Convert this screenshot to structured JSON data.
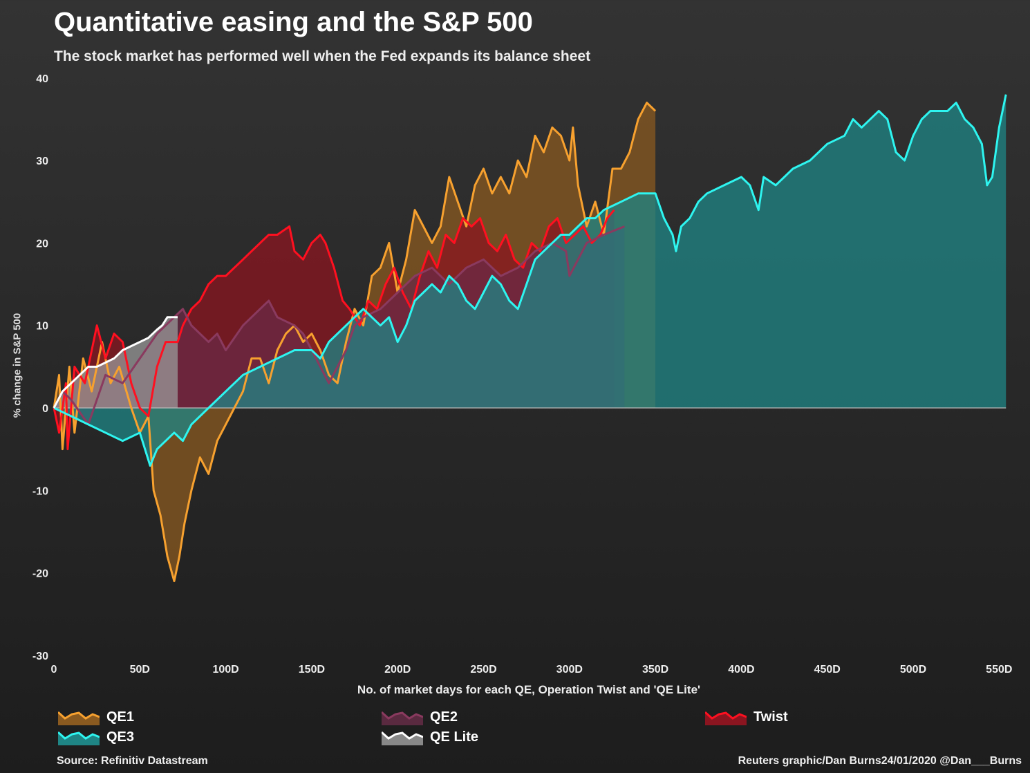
{
  "chart_data": {
    "type": "area",
    "title": "Quantitative easing and the S&P 500",
    "subtitle": "The stock market has performed well when the Fed expands its balance sheet",
    "xlabel": "No. of market days for each QE, Operation Twist and 'QE Lite'",
    "ylabel": "% change in S&P 500",
    "xlim": [
      0,
      560
    ],
    "ylim": [
      -30,
      40
    ],
    "x_ticks": [
      0,
      50,
      100,
      150,
      200,
      250,
      300,
      350,
      400,
      450,
      500,
      550
    ],
    "x_tick_labels": [
      "0",
      "50D",
      "100D",
      "150D",
      "200D",
      "250D",
      "300D",
      "350D",
      "400D",
      "450D",
      "500D",
      "550D"
    ],
    "y_ticks": [
      -30,
      -20,
      -10,
      0,
      10,
      20,
      30,
      40
    ],
    "y_tick_labels": [
      "-30",
      "-20",
      "-10",
      "0",
      "10",
      "20",
      "30",
      "40"
    ],
    "legend_placement": "bottom",
    "series": [
      {
        "name": "QE1",
        "line": "#f7a12f",
        "fill": "#8a5a20",
        "points": [
          [
            0,
            0
          ],
          [
            3,
            4
          ],
          [
            5,
            -5
          ],
          [
            9,
            5
          ],
          [
            12,
            -3
          ],
          [
            17,
            6
          ],
          [
            22,
            2
          ],
          [
            28,
            8
          ],
          [
            33,
            3
          ],
          [
            38,
            5
          ],
          [
            45,
            0
          ],
          [
            50,
            -3
          ],
          [
            55,
            -1
          ],
          [
            58,
            -10
          ],
          [
            62,
            -13
          ],
          [
            66,
            -18
          ],
          [
            70,
            -21
          ],
          [
            73,
            -18
          ],
          [
            76,
            -14
          ],
          [
            80,
            -10
          ],
          [
            85,
            -6
          ],
          [
            90,
            -8
          ],
          [
            95,
            -4
          ],
          [
            100,
            -2
          ],
          [
            105,
            0
          ],
          [
            110,
            2
          ],
          [
            115,
            6
          ],
          [
            120,
            6
          ],
          [
            125,
            3
          ],
          [
            130,
            7
          ],
          [
            135,
            9
          ],
          [
            140,
            10
          ],
          [
            145,
            8
          ],
          [
            150,
            9
          ],
          [
            155,
            7
          ],
          [
            160,
            4
          ],
          [
            165,
            3
          ],
          [
            170,
            8
          ],
          [
            175,
            12
          ],
          [
            180,
            10
          ],
          [
            185,
            16
          ],
          [
            190,
            17
          ],
          [
            195,
            20
          ],
          [
            200,
            14
          ],
          [
            205,
            18
          ],
          [
            210,
            24
          ],
          [
            215,
            22
          ],
          [
            220,
            20
          ],
          [
            225,
            22
          ],
          [
            230,
            28
          ],
          [
            235,
            25
          ],
          [
            240,
            22
          ],
          [
            245,
            27
          ],
          [
            250,
            29
          ],
          [
            255,
            26
          ],
          [
            260,
            28
          ],
          [
            265,
            26
          ],
          [
            270,
            30
          ],
          [
            275,
            28
          ],
          [
            280,
            33
          ],
          [
            285,
            31
          ],
          [
            290,
            34
          ],
          [
            295,
            33
          ],
          [
            300,
            30
          ],
          [
            302,
            34
          ],
          [
            305,
            27
          ],
          [
            310,
            22
          ],
          [
            315,
            25
          ],
          [
            320,
            21
          ],
          [
            325,
            29
          ],
          [
            330,
            29
          ],
          [
            335,
            31
          ],
          [
            340,
            35
          ],
          [
            345,
            37
          ],
          [
            350,
            36
          ]
        ]
      },
      {
        "name": "Twist",
        "line": "#ff1020",
        "fill": "#8b1520",
        "points": [
          [
            0,
            0
          ],
          [
            3,
            -3
          ],
          [
            7,
            3
          ],
          [
            8,
            -5
          ],
          [
            12,
            5
          ],
          [
            18,
            3
          ],
          [
            25,
            10
          ],
          [
            30,
            6
          ],
          [
            35,
            9
          ],
          [
            40,
            8
          ],
          [
            45,
            3
          ],
          [
            50,
            0
          ],
          [
            55,
            -1
          ],
          [
            60,
            5
          ],
          [
            65,
            8
          ],
          [
            72,
            8
          ],
          [
            75,
            10
          ],
          [
            80,
            12
          ],
          [
            85,
            13
          ],
          [
            90,
            15
          ],
          [
            95,
            16
          ],
          [
            100,
            16
          ],
          [
            105,
            17
          ],
          [
            110,
            18
          ],
          [
            115,
            19
          ],
          [
            120,
            20
          ],
          [
            125,
            21
          ],
          [
            130,
            21
          ],
          [
            137,
            22
          ],
          [
            140,
            19
          ],
          [
            145,
            18
          ],
          [
            150,
            20
          ],
          [
            155,
            21
          ],
          [
            158,
            20
          ],
          [
            163,
            17
          ],
          [
            168,
            13
          ],
          [
            172,
            12
          ],
          [
            178,
            10
          ],
          [
            183,
            13
          ],
          [
            188,
            12
          ],
          [
            193,
            15
          ],
          [
            198,
            17
          ],
          [
            203,
            14
          ],
          [
            208,
            12
          ],
          [
            213,
            16
          ],
          [
            218,
            19
          ],
          [
            223,
            17
          ],
          [
            228,
            21
          ],
          [
            233,
            20
          ],
          [
            238,
            23
          ],
          [
            243,
            22
          ],
          [
            248,
            23
          ],
          [
            253,
            20
          ],
          [
            258,
            19
          ],
          [
            263,
            21
          ],
          [
            268,
            18
          ],
          [
            273,
            17
          ],
          [
            278,
            20
          ],
          [
            283,
            19
          ],
          [
            288,
            22
          ],
          [
            293,
            23
          ],
          [
            298,
            20
          ],
          [
            303,
            21
          ],
          [
            308,
            22
          ],
          [
            313,
            20
          ],
          [
            318,
            21
          ],
          [
            322,
            23
          ],
          [
            326,
            24
          ]
        ]
      },
      {
        "name": "QE2",
        "line": "#8a3a5f",
        "fill": "#6b2a45",
        "points": [
          [
            0,
            0
          ],
          [
            5,
            2
          ],
          [
            10,
            1
          ],
          [
            20,
            -2
          ],
          [
            30,
            4
          ],
          [
            40,
            3
          ],
          [
            50,
            6
          ],
          [
            60,
            9
          ],
          [
            70,
            11
          ],
          [
            75,
            12
          ],
          [
            80,
            10
          ],
          [
            90,
            8
          ],
          [
            95,
            9
          ],
          [
            100,
            7
          ],
          [
            110,
            10
          ],
          [
            120,
            12
          ],
          [
            125,
            13
          ],
          [
            130,
            11
          ],
          [
            140,
            10
          ],
          [
            145,
            9
          ],
          [
            150,
            7
          ],
          [
            160,
            3
          ],
          [
            165,
            5
          ],
          [
            170,
            7
          ],
          [
            175,
            10
          ],
          [
            180,
            11
          ],
          [
            190,
            12
          ],
          [
            200,
            14
          ],
          [
            210,
            16
          ],
          [
            220,
            17
          ],
          [
            230,
            15
          ],
          [
            240,
            17
          ],
          [
            250,
            18
          ],
          [
            260,
            16
          ],
          [
            270,
            17
          ],
          [
            280,
            19
          ],
          [
            290,
            20
          ],
          [
            298,
            19
          ],
          [
            300,
            16
          ],
          [
            305,
            18
          ],
          [
            310,
            20
          ],
          [
            320,
            21
          ],
          [
            332,
            22
          ]
        ]
      },
      {
        "name": "QE3",
        "line": "#2ef5f0",
        "fill": "#1f8585",
        "points": [
          [
            0,
            0
          ],
          [
            10,
            -1
          ],
          [
            20,
            -2
          ],
          [
            30,
            -3
          ],
          [
            40,
            -4
          ],
          [
            50,
            -3
          ],
          [
            56,
            -7
          ],
          [
            60,
            -5
          ],
          [
            70,
            -3
          ],
          [
            75,
            -4
          ],
          [
            80,
            -2
          ],
          [
            90,
            0
          ],
          [
            100,
            2
          ],
          [
            110,
            4
          ],
          [
            120,
            5
          ],
          [
            130,
            6
          ],
          [
            140,
            7
          ],
          [
            150,
            7
          ],
          [
            155,
            6
          ],
          [
            160,
            8
          ],
          [
            170,
            10
          ],
          [
            175,
            11
          ],
          [
            180,
            12
          ],
          [
            185,
            11
          ],
          [
            190,
            10
          ],
          [
            195,
            11
          ],
          [
            200,
            8
          ],
          [
            205,
            10
          ],
          [
            210,
            13
          ],
          [
            215,
            14
          ],
          [
            220,
            15
          ],
          [
            225,
            14
          ],
          [
            230,
            16
          ],
          [
            235,
            15
          ],
          [
            240,
            13
          ],
          [
            245,
            12
          ],
          [
            250,
            14
          ],
          [
            255,
            16
          ],
          [
            260,
            15
          ],
          [
            265,
            13
          ],
          [
            270,
            12
          ],
          [
            275,
            15
          ],
          [
            280,
            18
          ],
          [
            285,
            19
          ],
          [
            290,
            20
          ],
          [
            295,
            21
          ],
          [
            300,
            21
          ],
          [
            305,
            22
          ],
          [
            310,
            23
          ],
          [
            315,
            23
          ],
          [
            320,
            24
          ],
          [
            330,
            25
          ],
          [
            340,
            26
          ],
          [
            350,
            26
          ],
          [
            355,
            23
          ],
          [
            360,
            21
          ],
          [
            362,
            19
          ],
          [
            365,
            22
          ],
          [
            370,
            23
          ],
          [
            375,
            25
          ],
          [
            380,
            26
          ],
          [
            390,
            27
          ],
          [
            400,
            28
          ],
          [
            405,
            27
          ],
          [
            410,
            24
          ],
          [
            413,
            28
          ],
          [
            420,
            27
          ],
          [
            425,
            28
          ],
          [
            430,
            29
          ],
          [
            440,
            30
          ],
          [
            450,
            32
          ],
          [
            460,
            33
          ],
          [
            465,
            35
          ],
          [
            470,
            34
          ],
          [
            475,
            35
          ],
          [
            480,
            36
          ],
          [
            485,
            35
          ],
          [
            490,
            31
          ],
          [
            495,
            30
          ],
          [
            500,
            33
          ],
          [
            505,
            35
          ],
          [
            510,
            36
          ],
          [
            520,
            36
          ],
          [
            525,
            37
          ],
          [
            530,
            35
          ],
          [
            535,
            34
          ],
          [
            540,
            32
          ],
          [
            543,
            27
          ],
          [
            546,
            28
          ],
          [
            550,
            34
          ],
          [
            554,
            38
          ]
        ]
      },
      {
        "name": "QE Lite",
        "line": "#ffffff",
        "fill": "#9a9a9a",
        "points": [
          [
            0,
            0
          ],
          [
            5,
            2
          ],
          [
            10,
            3
          ],
          [
            15,
            4
          ],
          [
            20,
            5
          ],
          [
            25,
            5
          ],
          [
            30,
            5.5
          ],
          [
            35,
            6
          ],
          [
            40,
            7
          ],
          [
            45,
            7.5
          ],
          [
            50,
            8
          ],
          [
            55,
            8.5
          ],
          [
            60,
            9.5
          ],
          [
            63,
            10
          ],
          [
            66,
            11
          ],
          [
            70,
            11
          ],
          [
            72,
            11
          ]
        ]
      }
    ],
    "legend": [
      {
        "name": "QE1",
        "line": "#f7a12f",
        "fill": "#8a5a20"
      },
      {
        "name": "QE2",
        "line": "#8a3a5f",
        "fill": "#5a2a40"
      },
      {
        "name": "Twist",
        "line": "#ff1020",
        "fill": "#8b1520"
      },
      {
        "name": "QE3",
        "line": "#2ef5f0",
        "fill": "#1f8585"
      },
      {
        "name": "QE Lite",
        "line": "#ffffff",
        "fill": "#888888"
      }
    ],
    "source": "Source: Refinitiv Datastream",
    "credit": "Reuters graphic/Dan Burns24/01/2020 @Dan___Burns"
  }
}
